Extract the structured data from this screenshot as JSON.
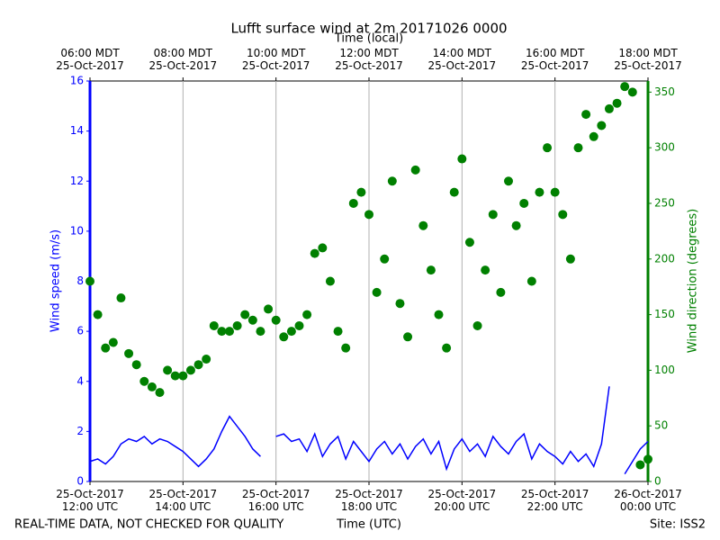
{
  "chart_data": {
    "type": "line",
    "title": "Lufft surface wind at 2m 20171026 0000",
    "x_label": "Time (UTC)",
    "x2_label": "Time (local)",
    "y_label": "Wind speed (m/s)",
    "y2_label": "Wind direction (degrees)",
    "footer_left": "REAL-TIME DATA, NOT CHECKED FOR QUALITY",
    "footer_right": "Site: ISS2",
    "grid": true,
    "xlim": [
      "2017-10-25 12:00",
      "2017-10-26 00:00"
    ],
    "xticks": [
      {
        "value": "2017-10-25 12:00",
        "label": "25-Oct-2017\n12:00 UTC"
      },
      {
        "value": "2017-10-25 14:00",
        "label": "25-Oct-2017\n14:00 UTC"
      },
      {
        "value": "2017-10-25 16:00",
        "label": "25-Oct-2017\n16:00 UTC"
      },
      {
        "value": "2017-10-25 18:00",
        "label": "25-Oct-2017\n18:00 UTC"
      },
      {
        "value": "2017-10-25 20:00",
        "label": "25-Oct-2017\n20:00 UTC"
      },
      {
        "value": "2017-10-25 22:00",
        "label": "25-Oct-2017\n22:00 UTC"
      },
      {
        "value": "2017-10-26 00:00",
        "label": "26-Oct-2017\n00:00 UTC"
      }
    ],
    "x2ticks": [
      {
        "value": "2017-10-25 12:00",
        "label": "06:00 MDT\n25-Oct-2017"
      },
      {
        "value": "2017-10-25 14:00",
        "label": "08:00 MDT\n25-Oct-2017"
      },
      {
        "value": "2017-10-25 16:00",
        "label": "10:00 MDT\n25-Oct-2017"
      },
      {
        "value": "2017-10-25 18:00",
        "label": "12:00 MDT\n25-Oct-2017"
      },
      {
        "value": "2017-10-25 20:00",
        "label": "14:00 MDT\n25-Oct-2017"
      },
      {
        "value": "2017-10-25 22:00",
        "label": "16:00 MDT\n25-Oct-2017"
      },
      {
        "value": "2017-10-26 00:00",
        "label": "18:00 MDT\n25-Oct-2017"
      }
    ],
    "ylim": [
      0,
      16
    ],
    "yticks": [
      0,
      2,
      4,
      6,
      8,
      10,
      12,
      14,
      16
    ],
    "y2lim": [
      0,
      360
    ],
    "y2ticks": [
      0,
      50,
      100,
      150,
      200,
      250,
      300,
      350
    ],
    "x": [
      "2017-10-25 12:00",
      "2017-10-25 12:10",
      "2017-10-25 12:20",
      "2017-10-25 12:30",
      "2017-10-25 12:40",
      "2017-10-25 12:50",
      "2017-10-25 13:00",
      "2017-10-25 13:10",
      "2017-10-25 13:20",
      "2017-10-25 13:30",
      "2017-10-25 13:40",
      "2017-10-25 13:50",
      "2017-10-25 14:00",
      "2017-10-25 14:10",
      "2017-10-25 14:20",
      "2017-10-25 14:30",
      "2017-10-25 14:40",
      "2017-10-25 14:50",
      "2017-10-25 15:00",
      "2017-10-25 15:10",
      "2017-10-25 15:20",
      "2017-10-25 15:30",
      "2017-10-25 15:40",
      "2017-10-25 15:50",
      "2017-10-25 16:00",
      "2017-10-25 16:10",
      "2017-10-25 16:20",
      "2017-10-25 16:30",
      "2017-10-25 16:40",
      "2017-10-25 16:50",
      "2017-10-25 17:00",
      "2017-10-25 17:10",
      "2017-10-25 17:20",
      "2017-10-25 17:30",
      "2017-10-25 17:40",
      "2017-10-25 17:50",
      "2017-10-25 18:00",
      "2017-10-25 18:10",
      "2017-10-25 18:20",
      "2017-10-25 18:30",
      "2017-10-25 18:40",
      "2017-10-25 18:50",
      "2017-10-25 19:00",
      "2017-10-25 19:10",
      "2017-10-25 19:20",
      "2017-10-25 19:30",
      "2017-10-25 19:40",
      "2017-10-25 19:50",
      "2017-10-25 20:00",
      "2017-10-25 20:10",
      "2017-10-25 20:20",
      "2017-10-25 20:30",
      "2017-10-25 20:40",
      "2017-10-25 20:50",
      "2017-10-25 21:00",
      "2017-10-25 21:10",
      "2017-10-25 21:20",
      "2017-10-25 21:30",
      "2017-10-25 21:40",
      "2017-10-25 21:50",
      "2017-10-25 22:00",
      "2017-10-25 22:10",
      "2017-10-25 22:20",
      "2017-10-25 22:30",
      "2017-10-25 22:40",
      "2017-10-25 22:50",
      "2017-10-25 23:00",
      "2017-10-25 23:10",
      "2017-10-25 23:20",
      "2017-10-25 23:30",
      "2017-10-25 23:40",
      "2017-10-25 23:50",
      "2017-10-26 00:00"
    ],
    "series": [
      {
        "name": "Wind speed",
        "type": "line",
        "axis": "y",
        "color": "#0000ff",
        "values": [
          0.8,
          0.9,
          0.7,
          1.0,
          1.5,
          1.7,
          1.6,
          1.8,
          1.5,
          1.7,
          1.6,
          1.4,
          1.2,
          0.9,
          0.6,
          0.9,
          1.3,
          2.0,
          2.6,
          2.2,
          1.8,
          1.3,
          1.0,
          null,
          1.8,
          1.9,
          1.6,
          1.7,
          1.2,
          1.9,
          1.0,
          1.5,
          1.8,
          0.9,
          1.6,
          1.2,
          0.8,
          1.3,
          1.6,
          1.1,
          1.5,
          0.9,
          1.4,
          1.7,
          1.1,
          1.6,
          0.5,
          1.3,
          1.7,
          1.2,
          1.5,
          1.0,
          1.8,
          1.4,
          1.1,
          1.6,
          1.9,
          0.9,
          1.5,
          1.2,
          1.0,
          0.7,
          1.2,
          0.8,
          1.1,
          0.6,
          1.5,
          3.8,
          null,
          0.3,
          0.8,
          1.3,
          1.6
        ]
      },
      {
        "name": "Wind direction",
        "type": "scatter",
        "axis": "y2",
        "color": "#008000",
        "values": [
          180,
          150,
          120,
          125,
          165,
          115,
          105,
          90,
          85,
          80,
          100,
          95,
          95,
          100,
          105,
          110,
          140,
          135,
          135,
          140,
          150,
          145,
          135,
          155,
          145,
          130,
          135,
          140,
          150,
          205,
          210,
          180,
          135,
          120,
          250,
          260,
          240,
          170,
          200,
          270,
          160,
          130,
          280,
          230,
          190,
          150,
          120,
          260,
          290,
          215,
          140,
          190,
          240,
          170,
          270,
          230,
          250,
          180,
          260,
          300,
          260,
          240,
          200,
          300,
          330,
          310,
          320,
          335,
          340,
          355,
          350,
          15,
          20
        ]
      }
    ]
  }
}
